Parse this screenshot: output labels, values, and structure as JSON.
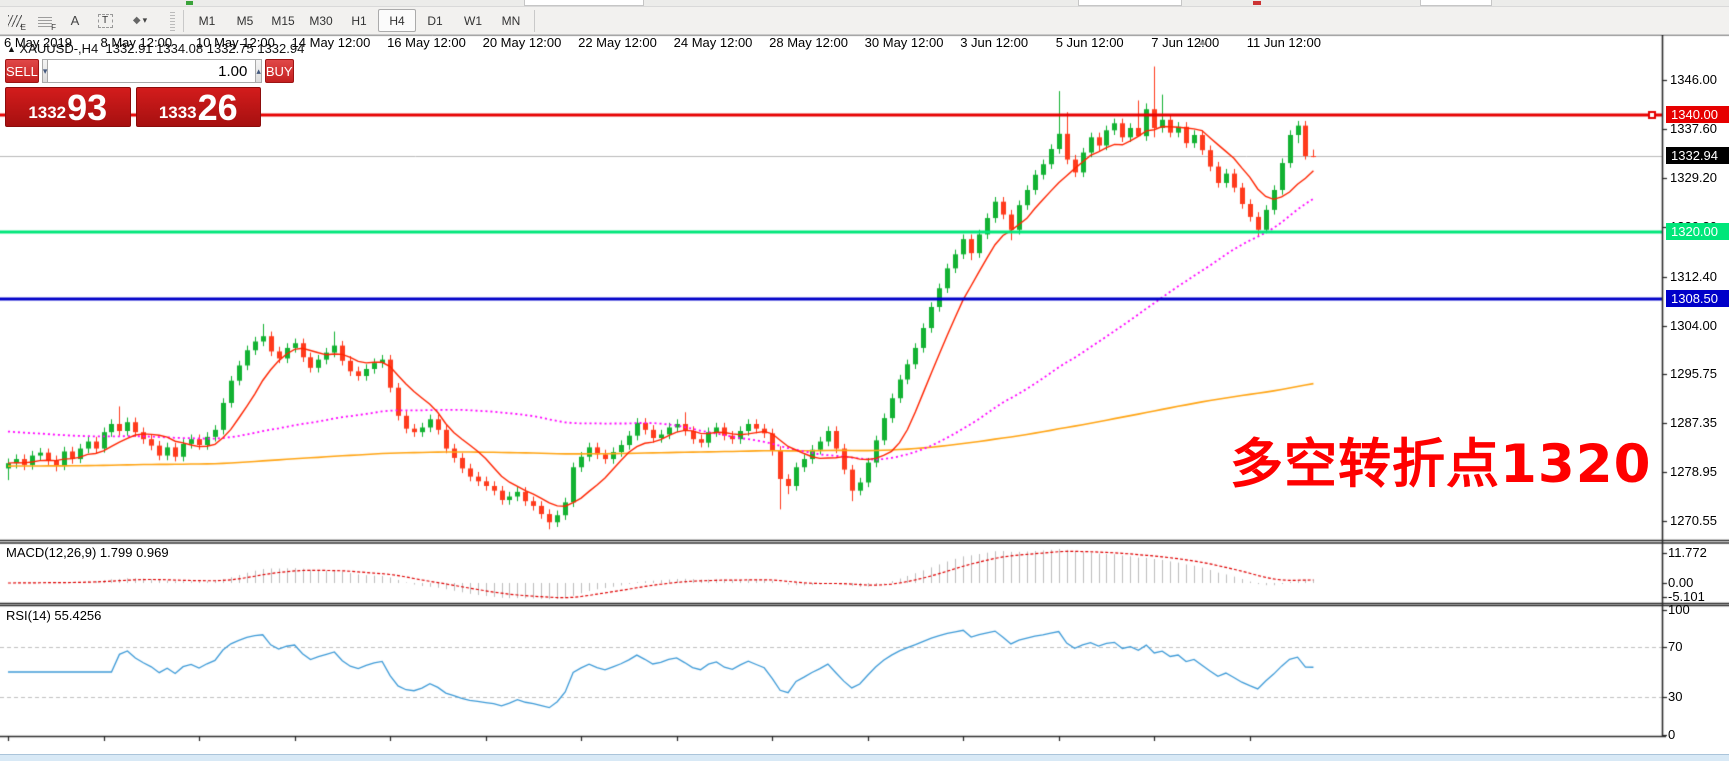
{
  "toolbar": {
    "tools": [
      {
        "name": "equidistant-channel",
        "label": "E"
      },
      {
        "name": "fibonacci-retracement",
        "label": "F"
      },
      {
        "name": "text",
        "label": "A"
      },
      {
        "name": "text-label",
        "label": "T"
      },
      {
        "name": "arrow-tools",
        "label": "◆"
      }
    ],
    "timeframes": [
      "M1",
      "M5",
      "M15",
      "M30",
      "H1",
      "H4",
      "D1",
      "W1",
      "MN"
    ],
    "active_timeframe": "H4"
  },
  "header": {
    "marker": "▲",
    "symbol": "XAUUSD-,H4",
    "ohlc": "1332.91 1334.08 1332.75 1332.94"
  },
  "icons": {
    "caret_down": "▾",
    "caret_up": "▴",
    "shift_marker": "▲"
  },
  "trade_panel": {
    "sell_label": "SELL",
    "buy_label": "BUY",
    "volume": "1.00",
    "sell_small": "1332",
    "sell_big": "93",
    "buy_small": "1333",
    "buy_big": "26"
  },
  "price_axis": {
    "ticks": [
      {
        "label": "1346.00",
        "price": 1346.0
      },
      {
        "label": "1337.60",
        "price": 1337.6
      },
      {
        "label": "1329.20",
        "price": 1329.2
      },
      {
        "label": "1320.80",
        "price": 1320.8
      },
      {
        "label": "1312.40",
        "price": 1312.4
      },
      {
        "label": "1304.00",
        "price": 1304.0
      },
      {
        "label": "1295.75",
        "price": 1295.75
      },
      {
        "label": "1287.35",
        "price": 1287.35
      },
      {
        "label": "1278.95",
        "price": 1278.95
      },
      {
        "label": "1270.55",
        "price": 1270.55
      }
    ],
    "badges": [
      {
        "label": "1340.00",
        "price": 1340.0,
        "bg": "#e60000",
        "fg": "#ffffff"
      },
      {
        "label": "1332.94",
        "price": 1332.94,
        "bg": "#000000",
        "fg": "#ffffff"
      },
      {
        "label": "1320.00",
        "price": 1320.0,
        "bg": "#00e67a",
        "fg": "#ffffff"
      },
      {
        "label": "1308.50",
        "price": 1308.5,
        "bg": "#0000c9",
        "fg": "#ffffff"
      }
    ]
  },
  "hlines": [
    {
      "price": 1340.0,
      "color": "#e60000",
      "width": 3
    },
    {
      "price": 1320.0,
      "color": "#00e67a",
      "width": 3
    },
    {
      "price": 1308.5,
      "color": "#0000c9",
      "width": 3
    }
  ],
  "current_price": 1332.94,
  "time_axis": [
    "6 May 2019",
    "8 May 12:00",
    "10 May 12:00",
    "14 May 12:00",
    "16 May 12:00",
    "20 May 12:00",
    "22 May 12:00",
    "24 May 12:00",
    "28 May 12:00",
    "30 May 12:00",
    "3 Jun 12:00",
    "5 Jun 12:00",
    "7 Jun 12:00",
    "11 Jun 12:00"
  ],
  "indicators": {
    "macd": {
      "label": "MACD(12,26,9) 1.799 0.969",
      "axis": [
        {
          "label": "11.772",
          "y": 553
        },
        {
          "label": "0.00",
          "y": 583
        },
        {
          "label": "-5.101",
          "y": 597
        }
      ]
    },
    "rsi": {
      "label": "RSI(14) 55.4256",
      "axis": [
        {
          "label": "100",
          "value": 100
        },
        {
          "label": "70",
          "value": 70
        },
        {
          "label": "30",
          "value": 30
        },
        {
          "label": "0",
          "value": 0
        }
      ],
      "dashed_levels": [
        70,
        30
      ]
    }
  },
  "annotation": {
    "text": "多空转折点1320",
    "color": "#ff0000"
  },
  "colors": {
    "bull": "#12b232",
    "bear": "#ff3a1c",
    "ma_fast": "#ff2400",
    "ma_mid": "#ff00ff",
    "ma_slow": "#ffa515",
    "macd_bar": "#bdbdbd",
    "macd_signal": "#e00000",
    "rsi_line": "#3e9bd8",
    "current_price_line": "#b9b9b9",
    "grid_dash": "#c0c0c0",
    "border": "#2e2e2e"
  },
  "chart_data": {
    "type": "candlestick",
    "symbol": "XAUUSD-",
    "timeframe": "H4",
    "title": "XAUUSD- H4 with MACD(12,26,9) and RSI(14)",
    "ohlc_last": [
      1332.91,
      1334.08,
      1332.75,
      1332.94
    ],
    "y_range": [
      1267.5,
      1353.5
    ],
    "x_labels": [
      "6 May 2019",
      "8 May 12:00",
      "10 May 12:00",
      "14 May 12:00",
      "16 May 12:00",
      "20 May 12:00",
      "22 May 12:00",
      "24 May 12:00",
      "28 May 12:00",
      "30 May 12:00",
      "3 Jun 12:00",
      "5 Jun 12:00",
      "7 Jun 12:00",
      "11 Jun 12:00"
    ],
    "candles": [
      [
        1279.6,
        1281.3,
        1277.6,
        1280.5
      ],
      [
        1280.5,
        1282.0,
        1279.6,
        1281.2
      ],
      [
        1281.2,
        1282.0,
        1279.3,
        1280.2
      ],
      [
        1280.2,
        1282.6,
        1279.4,
        1281.8
      ],
      [
        1281.8,
        1283.1,
        1281.0,
        1282.3
      ],
      [
        1282.3,
        1283.0,
        1280.2,
        1281.0
      ],
      [
        1281.0,
        1281.8,
        1279.1,
        1280.0
      ],
      [
        1280.0,
        1283.3,
        1279.3,
        1282.5
      ],
      [
        1282.5,
        1283.3,
        1280.4,
        1281.2
      ],
      [
        1281.2,
        1283.8,
        1280.5,
        1283.0
      ],
      [
        1283.0,
        1285.0,
        1282.2,
        1284.2
      ],
      [
        1284.2,
        1285.0,
        1282.2,
        1283.0
      ],
      [
        1283.0,
        1286.6,
        1282.3,
        1285.8
      ],
      [
        1285.8,
        1288.0,
        1285.0,
        1287.2
      ],
      [
        1287.2,
        1290.2,
        1285.2,
        1286.0
      ],
      [
        1286.0,
        1288.3,
        1285.2,
        1287.5
      ],
      [
        1287.5,
        1288.3,
        1285.0,
        1285.8
      ],
      [
        1285.8,
        1286.6,
        1283.8,
        1284.6
      ],
      [
        1284.6,
        1285.4,
        1282.7,
        1283.5
      ],
      [
        1283.5,
        1284.3,
        1281.0,
        1281.8
      ],
      [
        1281.8,
        1284.0,
        1281.0,
        1283.2
      ],
      [
        1283.2,
        1284.0,
        1280.8,
        1281.6
      ],
      [
        1281.6,
        1284.6,
        1280.8,
        1283.8
      ],
      [
        1283.8,
        1285.4,
        1283.0,
        1284.6
      ],
      [
        1284.6,
        1285.4,
        1282.8,
        1283.6
      ],
      [
        1283.6,
        1285.8,
        1282.8,
        1285.0
      ],
      [
        1285.0,
        1287.0,
        1284.2,
        1286.2
      ],
      [
        1286.2,
        1291.6,
        1285.4,
        1290.8
      ],
      [
        1290.8,
        1295.4,
        1290.0,
        1294.6
      ],
      [
        1294.6,
        1298.0,
        1293.8,
        1297.2
      ],
      [
        1297.2,
        1300.6,
        1296.4,
        1299.8
      ],
      [
        1299.8,
        1302.1,
        1299.0,
        1301.3
      ],
      [
        1301.3,
        1304.3,
        1300.5,
        1302.2
      ],
      [
        1302.2,
        1303.0,
        1298.8,
        1299.6
      ],
      [
        1299.6,
        1300.4,
        1297.6,
        1298.4
      ],
      [
        1298.4,
        1301.0,
        1297.6,
        1300.2
      ],
      [
        1300.2,
        1301.8,
        1299.4,
        1301.0
      ],
      [
        1301.0,
        1301.8,
        1297.8,
        1298.6
      ],
      [
        1298.6,
        1299.4,
        1296.0,
        1296.8
      ],
      [
        1296.8,
        1299.0,
        1296.0,
        1298.2
      ],
      [
        1298.2,
        1300.2,
        1297.4,
        1299.4
      ],
      [
        1299.4,
        1303.0,
        1298.6,
        1300.6
      ],
      [
        1300.6,
        1301.4,
        1297.2,
        1298.0
      ],
      [
        1298.0,
        1298.8,
        1295.4,
        1296.2
      ],
      [
        1296.2,
        1297.0,
        1294.6,
        1295.4
      ],
      [
        1295.4,
        1297.4,
        1294.6,
        1296.6
      ],
      [
        1296.6,
        1298.4,
        1295.8,
        1297.6
      ],
      [
        1297.6,
        1299.0,
        1296.8,
        1298.2
      ],
      [
        1298.2,
        1299.0,
        1292.6,
        1293.4
      ],
      [
        1293.4,
        1294.2,
        1287.8,
        1288.6
      ],
      [
        1288.6,
        1289.4,
        1285.6,
        1286.4
      ],
      [
        1286.4,
        1287.2,
        1285.0,
        1285.8
      ],
      [
        1285.8,
        1287.4,
        1285.0,
        1286.6
      ],
      [
        1286.6,
        1288.8,
        1285.8,
        1288.0
      ],
      [
        1288.0,
        1288.8,
        1285.4,
        1286.2
      ],
      [
        1286.2,
        1287.0,
        1282.2,
        1283.0
      ],
      [
        1283.0,
        1283.8,
        1280.6,
        1281.4
      ],
      [
        1281.4,
        1282.2,
        1278.8,
        1279.6
      ],
      [
        1279.6,
        1280.4,
        1277.4,
        1278.2
      ],
      [
        1278.2,
        1279.0,
        1276.6,
        1277.4
      ],
      [
        1277.4,
        1278.2,
        1275.8,
        1276.6
      ],
      [
        1276.6,
        1277.4,
        1275.0,
        1275.8
      ],
      [
        1275.8,
        1276.6,
        1273.4,
        1274.2
      ],
      [
        1274.2,
        1275.6,
        1273.4,
        1274.8
      ],
      [
        1274.8,
        1276.4,
        1274.0,
        1275.6
      ],
      [
        1275.6,
        1276.4,
        1273.2,
        1274.0
      ],
      [
        1274.0,
        1274.8,
        1272.4,
        1273.2
      ],
      [
        1273.2,
        1274.0,
        1271.0,
        1271.8
      ],
      [
        1271.8,
        1272.6,
        1269.2,
        1270.4
      ],
      [
        1270.4,
        1272.4,
        1269.6,
        1271.6
      ],
      [
        1271.6,
        1274.6,
        1270.8,
        1273.8
      ],
      [
        1273.8,
        1280.6,
        1273.0,
        1279.8
      ],
      [
        1279.8,
        1282.4,
        1279.0,
        1281.6
      ],
      [
        1281.6,
        1284.0,
        1280.8,
        1283.2
      ],
      [
        1283.2,
        1284.0,
        1281.2,
        1282.0
      ],
      [
        1282.0,
        1282.8,
        1280.4,
        1281.2
      ],
      [
        1281.2,
        1283.2,
        1280.4,
        1282.4
      ],
      [
        1282.4,
        1284.4,
        1281.6,
        1283.6
      ],
      [
        1283.6,
        1286.0,
        1282.8,
        1285.2
      ],
      [
        1285.2,
        1288.2,
        1284.4,
        1287.4
      ],
      [
        1287.4,
        1288.2,
        1285.4,
        1286.2
      ],
      [
        1286.2,
        1287.0,
        1284.0,
        1284.8
      ],
      [
        1284.8,
        1286.2,
        1284.0,
        1285.4
      ],
      [
        1285.4,
        1287.4,
        1284.6,
        1286.6
      ],
      [
        1286.6,
        1288.0,
        1285.8,
        1287.2
      ],
      [
        1287.2,
        1289.2,
        1285.2,
        1286.0
      ],
      [
        1286.0,
        1286.8,
        1283.8,
        1284.6
      ],
      [
        1284.6,
        1285.4,
        1283.2,
        1284.0
      ],
      [
        1284.0,
        1286.6,
        1283.2,
        1285.8
      ],
      [
        1285.8,
        1287.4,
        1285.0,
        1286.6
      ],
      [
        1286.6,
        1287.4,
        1284.4,
        1285.2
      ],
      [
        1285.2,
        1286.0,
        1283.8,
        1284.6
      ],
      [
        1284.6,
        1286.8,
        1283.8,
        1286.0
      ],
      [
        1286.0,
        1288.0,
        1285.2,
        1287.2
      ],
      [
        1287.2,
        1288.0,
        1285.6,
        1286.4
      ],
      [
        1286.4,
        1287.2,
        1284.8,
        1285.6
      ],
      [
        1285.6,
        1286.4,
        1281.8,
        1282.6
      ],
      [
        1282.6,
        1283.4,
        1272.6,
        1277.8
      ],
      [
        1277.8,
        1278.6,
        1275.2,
        1276.6
      ],
      [
        1276.6,
        1280.6,
        1275.8,
        1279.8
      ],
      [
        1279.8,
        1282.0,
        1279.0,
        1281.2
      ],
      [
        1281.2,
        1283.6,
        1280.4,
        1282.8
      ],
      [
        1282.8,
        1285.0,
        1282.0,
        1284.2
      ],
      [
        1284.2,
        1286.8,
        1283.4,
        1286.0
      ],
      [
        1286.0,
        1286.8,
        1282.2,
        1283.0
      ],
      [
        1283.0,
        1283.8,
        1278.6,
        1279.4
      ],
      [
        1279.4,
        1280.2,
        1274.0,
        1275.8
      ],
      [
        1275.8,
        1278.0,
        1275.0,
        1277.2
      ],
      [
        1277.2,
        1281.4,
        1276.4,
        1280.6
      ],
      [
        1280.6,
        1285.2,
        1279.8,
        1284.4
      ],
      [
        1284.4,
        1289.0,
        1283.6,
        1288.2
      ],
      [
        1288.2,
        1292.4,
        1287.4,
        1291.6
      ],
      [
        1291.6,
        1295.6,
        1290.8,
        1294.8
      ],
      [
        1294.8,
        1298.2,
        1294.0,
        1297.4
      ],
      [
        1297.4,
        1301.0,
        1296.6,
        1300.2
      ],
      [
        1300.2,
        1304.4,
        1299.4,
        1303.6
      ],
      [
        1303.6,
        1308.0,
        1302.8,
        1307.2
      ],
      [
        1307.2,
        1311.2,
        1306.4,
        1310.4
      ],
      [
        1310.4,
        1314.6,
        1309.6,
        1313.8
      ],
      [
        1313.8,
        1317.0,
        1313.0,
        1316.2
      ],
      [
        1316.2,
        1319.6,
        1315.4,
        1318.8
      ],
      [
        1318.8,
        1319.6,
        1315.2,
        1316.4
      ],
      [
        1316.4,
        1320.4,
        1315.6,
        1319.6
      ],
      [
        1319.6,
        1323.2,
        1318.8,
        1322.4
      ],
      [
        1322.4,
        1326.0,
        1321.6,
        1325.2
      ],
      [
        1325.2,
        1326.0,
        1322.2,
        1323.0
      ],
      [
        1323.0,
        1323.8,
        1318.6,
        1320.4
      ],
      [
        1320.4,
        1325.4,
        1319.6,
        1324.6
      ],
      [
        1324.6,
        1328.0,
        1323.8,
        1327.2
      ],
      [
        1327.2,
        1330.6,
        1326.4,
        1329.8
      ],
      [
        1329.8,
        1332.4,
        1329.0,
        1331.6
      ],
      [
        1331.6,
        1335.0,
        1330.8,
        1334.2
      ],
      [
        1334.2,
        1344.1,
        1333.4,
        1336.8
      ],
      [
        1336.8,
        1340.5,
        1331.6,
        1332.4
      ],
      [
        1332.4,
        1333.2,
        1329.4,
        1330.2
      ],
      [
        1330.2,
        1334.4,
        1329.4,
        1333.6
      ],
      [
        1333.6,
        1337.0,
        1332.8,
        1336.2
      ],
      [
        1336.2,
        1337.0,
        1333.9,
        1334.8
      ],
      [
        1334.8,
        1338.2,
        1334.0,
        1337.4
      ],
      [
        1337.4,
        1339.4,
        1336.6,
        1338.6
      ],
      [
        1338.6,
        1339.4,
        1335.4,
        1336.2
      ],
      [
        1336.2,
        1338.6,
        1335.4,
        1337.8
      ],
      [
        1337.8,
        1342.5,
        1337.0,
        1336.4
      ],
      [
        1336.4,
        1342.0,
        1335.6,
        1341.0
      ],
      [
        1341.0,
        1348.3,
        1336.2,
        1337.8
      ],
      [
        1337.8,
        1343.5,
        1337.0,
        1339.2
      ],
      [
        1339.2,
        1340.0,
        1336.2,
        1337.0
      ],
      [
        1337.0,
        1338.8,
        1336.2,
        1338.0
      ],
      [
        1338.0,
        1338.8,
        1334.4,
        1335.2
      ],
      [
        1335.2,
        1337.4,
        1334.4,
        1336.6
      ],
      [
        1336.6,
        1337.4,
        1333.2,
        1334.0
      ],
      [
        1334.0,
        1334.8,
        1330.4,
        1331.2
      ],
      [
        1331.2,
        1332.0,
        1327.6,
        1328.4
      ],
      [
        1328.4,
        1330.8,
        1327.6,
        1330.0
      ],
      [
        1330.0,
        1330.8,
        1326.8,
        1327.6
      ],
      [
        1327.6,
        1328.4,
        1324.0,
        1324.8
      ],
      [
        1324.8,
        1325.6,
        1321.8,
        1322.6
      ],
      [
        1322.6,
        1323.4,
        1319.3,
        1320.4
      ],
      [
        1320.4,
        1324.6,
        1319.8,
        1323.8
      ],
      [
        1323.8,
        1328.0,
        1323.0,
        1327.2
      ],
      [
        1327.2,
        1332.6,
        1326.4,
        1331.8
      ],
      [
        1331.8,
        1337.4,
        1331.0,
        1336.6
      ],
      [
        1336.6,
        1339.0,
        1335.2,
        1338.2
      ],
      [
        1338.2,
        1339.0,
        1332.4,
        1333.0
      ],
      [
        1333.0,
        1334.1,
        1332.8,
        1332.9
      ]
    ]
  }
}
